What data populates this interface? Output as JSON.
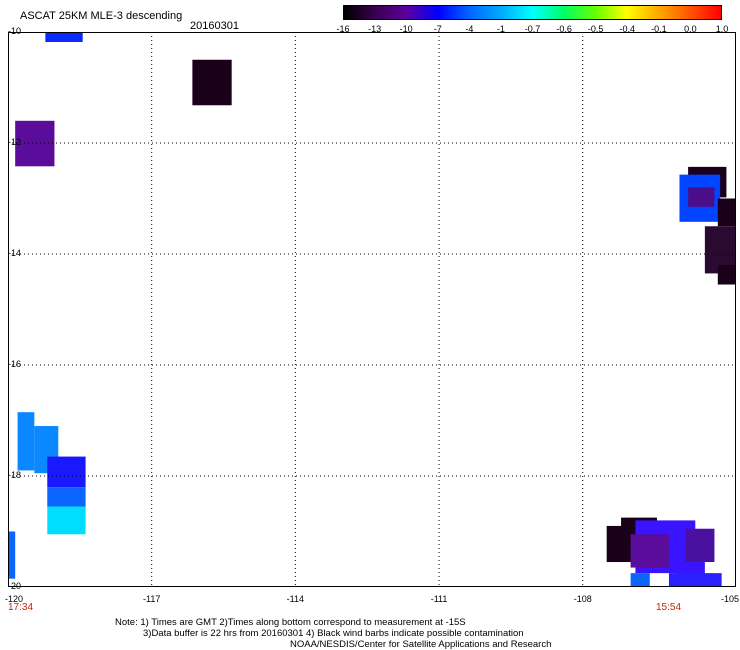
{
  "header": {
    "title": "ASCAT 25KM MLE-3 descending",
    "date": "20160301"
  },
  "colorbar": {
    "labels": [
      "-16",
      "-13",
      "-10",
      "-7",
      "-4",
      "-1",
      "-0.7",
      "-0.6",
      "-0.5",
      "-0.4",
      "-0.1",
      "0.0",
      "1.0"
    ],
    "colors": [
      "#000000",
      "#3a004f",
      "#5a00a0",
      "#0000ff",
      "#0066ff",
      "#00aaff",
      "#00ffff",
      "#00ff66",
      "#66ff00",
      "#ffff00",
      "#ffaa00",
      "#ff5500",
      "#ff0000"
    ]
  },
  "axes": {
    "x_labels": [
      "-120",
      "-117",
      "-114",
      "-111",
      "-108",
      "-105"
    ],
    "y_labels": [
      "-10",
      "-12",
      "-14",
      "-16",
      "-18",
      "-20"
    ]
  },
  "times": {
    "left": "17:34",
    "right": "15:54"
  },
  "notes": {
    "line1": "Note: 1) Times are GMT 2)Times along bottom correspond to measurement at -15S",
    "line2": "3)Data buffer is 22 hrs from 20160301 4) Black wind barbs indicate possible contamination",
    "line3": "NOAA/NESDIS/Center for Satellite Applications and Research"
  },
  "cells": [
    {
      "lon": -119.22,
      "lat": -10.18,
      "w": 0.78,
      "h": 0.18,
      "color": "#0a2aff"
    },
    {
      "lon": -116.15,
      "lat": -11.32,
      "w": 0.82,
      "h": 0.82,
      "color": "#1a0018"
    },
    {
      "lon": -119.85,
      "lat": -12.42,
      "w": 0.82,
      "h": 0.82,
      "color": "#5a0c9a"
    },
    {
      "lon": -105.8,
      "lat": -12.98,
      "w": 0.8,
      "h": 0.55,
      "color": "#1a0018"
    },
    {
      "lon": -105.98,
      "lat": -13.42,
      "w": 0.85,
      "h": 0.85,
      "color": "#0044ff"
    },
    {
      "lon": -105.8,
      "lat": -13.15,
      "w": 0.55,
      "h": 0.35,
      "color": "#4a0e8a"
    },
    {
      "lon": -105.18,
      "lat": -13.5,
      "w": 0.42,
      "h": 0.5,
      "color": "#1a0018"
    },
    {
      "lon": -105.45,
      "lat": -14.35,
      "w": 0.75,
      "h": 0.85,
      "color": "#2a0a30"
    },
    {
      "lon": -105.18,
      "lat": -14.55,
      "w": 0.55,
      "h": 0.35,
      "color": "#1a0018"
    },
    {
      "lon": -119.8,
      "lat": -17.9,
      "w": 0.35,
      "h": 1.05,
      "color": "#0a88ff"
    },
    {
      "lon": -119.45,
      "lat": -17.95,
      "w": 0.5,
      "h": 0.85,
      "color": "#0a88ff"
    },
    {
      "lon": -119.18,
      "lat": -18.2,
      "w": 0.8,
      "h": 0.55,
      "color": "#1a18ff"
    },
    {
      "lon": -119.18,
      "lat": -18.55,
      "w": 0.8,
      "h": 0.35,
      "color": "#0a66ff"
    },
    {
      "lon": -119.18,
      "lat": -19.05,
      "w": 0.8,
      "h": 0.5,
      "color": "#00ddff"
    },
    {
      "lon": -120.0,
      "lat": -19.85,
      "w": 0.15,
      "h": 0.85,
      "color": "#0a66ff"
    },
    {
      "lon": -107.5,
      "lat": -19.55,
      "w": 0.85,
      "h": 0.65,
      "color": "#1a0018"
    },
    {
      "lon": -107.2,
      "lat": -19.3,
      "w": 0.75,
      "h": 0.55,
      "color": "#1a0018"
    },
    {
      "lon": -106.9,
      "lat": -19.75,
      "w": 1.25,
      "h": 0.95,
      "color": "#3a14ff"
    },
    {
      "lon": -107.0,
      "lat": -19.65,
      "w": 0.8,
      "h": 0.6,
      "color": "#5a0c9a"
    },
    {
      "lon": -106.05,
      "lat": -19.8,
      "w": 0.6,
      "h": 0.55,
      "color": "#3a14ff"
    },
    {
      "lon": -105.85,
      "lat": -19.55,
      "w": 0.6,
      "h": 0.6,
      "color": "#4a10a0"
    },
    {
      "lon": -107.0,
      "lat": -20.0,
      "w": 0.4,
      "h": 0.25,
      "color": "#0a66ff"
    },
    {
      "lon": -106.2,
      "lat": -20.0,
      "w": 1.1,
      "h": 0.25,
      "color": "#2a20ff"
    }
  ]
}
